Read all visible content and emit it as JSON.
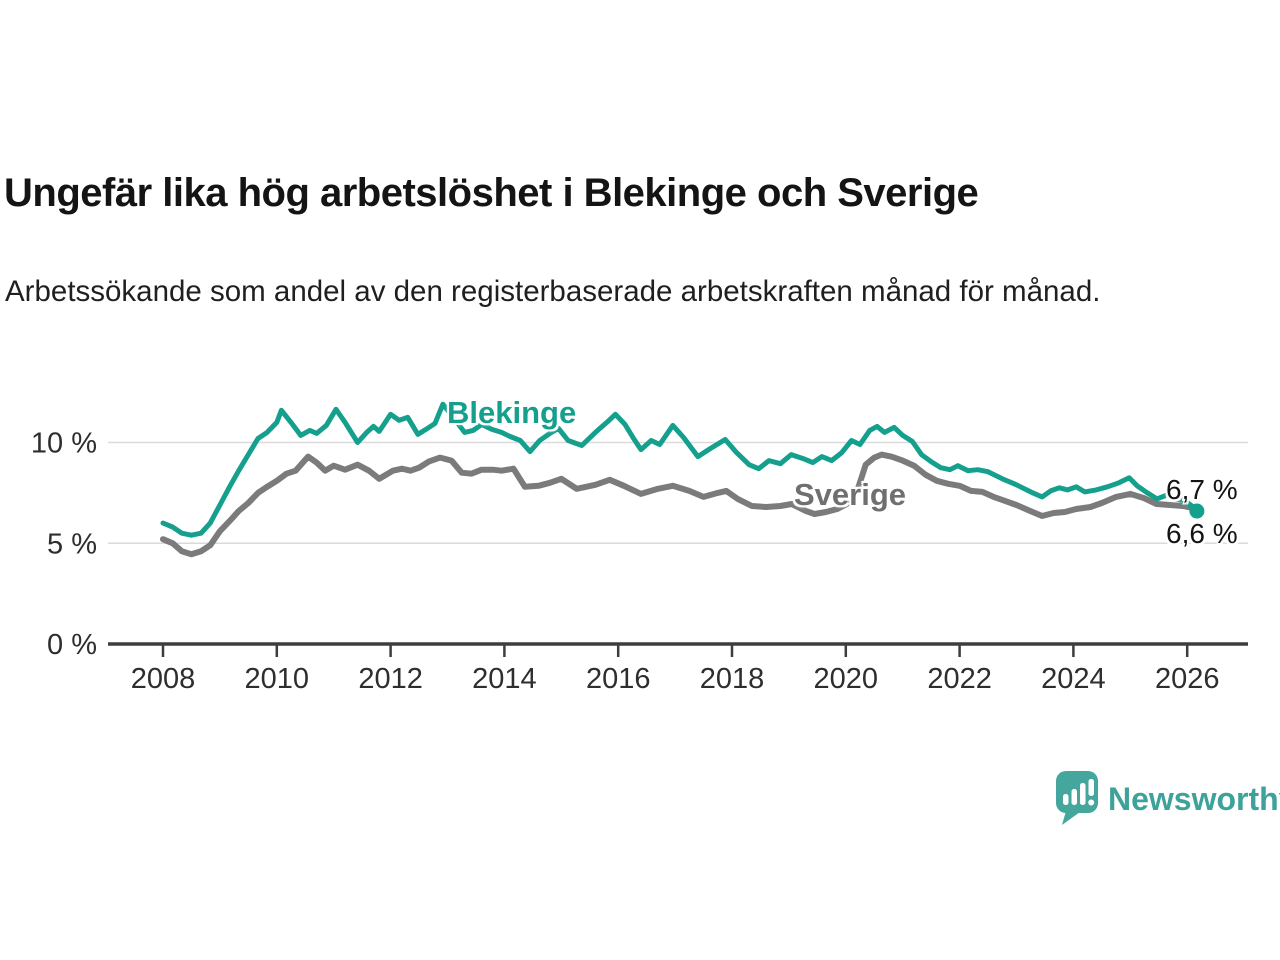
{
  "title": "Ungefär lika hög arbetslöshet i Blekinge och Sverige",
  "subtitle": "Arbetssökande som andel av den registerbaserade arbetskraften månad för månad.",
  "branding": {
    "logo_text": "Newsworthy",
    "logo_color": "#40a49b",
    "logo_icon": "speech-bubble-bar-chart"
  },
  "colors": {
    "blekinge": "#14a08d",
    "sverige": "#7b7b7b",
    "sverige_label": "#6f6f6f",
    "axis": "#3d3d3d",
    "grid": "#dadada",
    "tick_text": "#2e2e2e",
    "value_text": "#141414"
  },
  "chart_data": {
    "type": "line",
    "title": "Ungefär lika hög arbetslöshet i Blekinge och Sverige",
    "xlabel": "",
    "ylabel": "Arbetssökande som andel av den registerbaserade arbetskraften",
    "unit": "%",
    "xlim": [
      2008,
      2026.3
    ],
    "ylim": [
      0,
      12.4
    ],
    "grid": "horizontal",
    "legend_position": "inline-labels",
    "x_ticks": [
      2008,
      2010,
      2012,
      2014,
      2016,
      2018,
      2020,
      2022,
      2024,
      2026
    ],
    "y_ticks": [
      {
        "value": 0,
        "label": "0 %"
      },
      {
        "value": 5,
        "label": "5 %"
      },
      {
        "value": 10,
        "label": "10 %"
      }
    ],
    "series": [
      {
        "name": "Blekinge",
        "end_label": "6,6 %",
        "end_value": 6.6,
        "marker_on_last_point": true,
        "points": [
          [
            2008.0,
            6.0
          ],
          [
            2008.17,
            5.8
          ],
          [
            2008.33,
            5.5
          ],
          [
            2008.5,
            5.4
          ],
          [
            2008.67,
            5.5
          ],
          [
            2008.83,
            6.0
          ],
          [
            2009.0,
            6.9
          ],
          [
            2009.17,
            7.8
          ],
          [
            2009.33,
            8.6
          ],
          [
            2009.5,
            9.4
          ],
          [
            2009.67,
            10.2
          ],
          [
            2009.83,
            10.5
          ],
          [
            2010.0,
            11.0
          ],
          [
            2010.08,
            11.6
          ],
          [
            2010.25,
            11.0
          ],
          [
            2010.42,
            10.35
          ],
          [
            2010.58,
            10.6
          ],
          [
            2010.7,
            10.45
          ],
          [
            2010.87,
            10.85
          ],
          [
            2011.04,
            11.65
          ],
          [
            2011.2,
            11.0
          ],
          [
            2011.42,
            10.0
          ],
          [
            2011.58,
            10.5
          ],
          [
            2011.7,
            10.8
          ],
          [
            2011.8,
            10.55
          ],
          [
            2012.0,
            11.4
          ],
          [
            2012.15,
            11.1
          ],
          [
            2012.3,
            11.25
          ],
          [
            2012.48,
            10.4
          ],
          [
            2012.62,
            10.65
          ],
          [
            2012.78,
            10.95
          ],
          [
            2012.92,
            11.9
          ],
          [
            2013.1,
            11.25
          ],
          [
            2013.3,
            10.5
          ],
          [
            2013.45,
            10.6
          ],
          [
            2013.6,
            10.9
          ],
          [
            2013.78,
            10.65
          ],
          [
            2013.95,
            10.5
          ],
          [
            2014.1,
            10.3
          ],
          [
            2014.28,
            10.1
          ],
          [
            2014.45,
            9.55
          ],
          [
            2014.62,
            10.1
          ],
          [
            2014.8,
            10.45
          ],
          [
            2014.95,
            10.7
          ],
          [
            2015.12,
            10.1
          ],
          [
            2015.36,
            9.85
          ],
          [
            2015.6,
            10.5
          ],
          [
            2015.8,
            11.0
          ],
          [
            2015.95,
            11.4
          ],
          [
            2016.12,
            10.9
          ],
          [
            2016.27,
            10.2
          ],
          [
            2016.4,
            9.65
          ],
          [
            2016.58,
            10.1
          ],
          [
            2016.73,
            9.9
          ],
          [
            2016.96,
            10.85
          ],
          [
            2017.15,
            10.25
          ],
          [
            2017.4,
            9.3
          ],
          [
            2017.62,
            9.7
          ],
          [
            2017.88,
            10.15
          ],
          [
            2018.08,
            9.5
          ],
          [
            2018.3,
            8.9
          ],
          [
            2018.47,
            8.7
          ],
          [
            2018.65,
            9.1
          ],
          [
            2018.85,
            8.95
          ],
          [
            2019.04,
            9.4
          ],
          [
            2019.25,
            9.2
          ],
          [
            2019.42,
            9.0
          ],
          [
            2019.58,
            9.3
          ],
          [
            2019.75,
            9.1
          ],
          [
            2019.93,
            9.5
          ],
          [
            2020.1,
            10.1
          ],
          [
            2020.25,
            9.9
          ],
          [
            2020.42,
            10.6
          ],
          [
            2020.55,
            10.8
          ],
          [
            2020.68,
            10.5
          ],
          [
            2020.85,
            10.75
          ],
          [
            2021.0,
            10.35
          ],
          [
            2021.17,
            10.05
          ],
          [
            2021.33,
            9.4
          ],
          [
            2021.5,
            9.05
          ],
          [
            2021.67,
            8.75
          ],
          [
            2021.83,
            8.65
          ],
          [
            2021.97,
            8.85
          ],
          [
            2022.15,
            8.6
          ],
          [
            2022.32,
            8.65
          ],
          [
            2022.5,
            8.55
          ],
          [
            2022.75,
            8.2
          ],
          [
            2023.0,
            7.9
          ],
          [
            2023.25,
            7.55
          ],
          [
            2023.45,
            7.3
          ],
          [
            2023.6,
            7.6
          ],
          [
            2023.75,
            7.75
          ],
          [
            2023.9,
            7.65
          ],
          [
            2024.05,
            7.8
          ],
          [
            2024.2,
            7.55
          ],
          [
            2024.4,
            7.65
          ],
          [
            2024.6,
            7.8
          ],
          [
            2024.8,
            8.0
          ],
          [
            2024.98,
            8.25
          ],
          [
            2025.12,
            7.85
          ],
          [
            2025.3,
            7.5
          ],
          [
            2025.47,
            7.2
          ],
          [
            2025.63,
            7.38
          ],
          [
            2025.8,
            7.2
          ],
          [
            2025.97,
            7.1
          ],
          [
            2026.08,
            6.85
          ],
          [
            2026.17,
            6.6
          ]
        ]
      },
      {
        "name": "Sverige",
        "end_label": "6,7 %",
        "end_value": 6.7,
        "marker_on_last_point": false,
        "points": [
          [
            2008.0,
            5.2
          ],
          [
            2008.17,
            5.0
          ],
          [
            2008.33,
            4.6
          ],
          [
            2008.5,
            4.45
          ],
          [
            2008.67,
            4.6
          ],
          [
            2008.83,
            4.9
          ],
          [
            2009.0,
            5.6
          ],
          [
            2009.17,
            6.1
          ],
          [
            2009.33,
            6.6
          ],
          [
            2009.5,
            7.0
          ],
          [
            2009.67,
            7.5
          ],
          [
            2009.83,
            7.8
          ],
          [
            2010.0,
            8.1
          ],
          [
            2010.17,
            8.45
          ],
          [
            2010.33,
            8.6
          ],
          [
            2010.55,
            9.3
          ],
          [
            2010.7,
            9.0
          ],
          [
            2010.85,
            8.6
          ],
          [
            2011.0,
            8.85
          ],
          [
            2011.2,
            8.65
          ],
          [
            2011.42,
            8.9
          ],
          [
            2011.62,
            8.6
          ],
          [
            2011.8,
            8.2
          ],
          [
            2012.04,
            8.6
          ],
          [
            2012.2,
            8.7
          ],
          [
            2012.35,
            8.6
          ],
          [
            2012.5,
            8.75
          ],
          [
            2012.67,
            9.05
          ],
          [
            2012.87,
            9.25
          ],
          [
            2013.07,
            9.1
          ],
          [
            2013.25,
            8.5
          ],
          [
            2013.42,
            8.45
          ],
          [
            2013.6,
            8.65
          ],
          [
            2013.8,
            8.65
          ],
          [
            2013.95,
            8.6
          ],
          [
            2014.16,
            8.7
          ],
          [
            2014.36,
            7.8
          ],
          [
            2014.6,
            7.85
          ],
          [
            2014.8,
            8.0
          ],
          [
            2015.0,
            8.2
          ],
          [
            2015.27,
            7.7
          ],
          [
            2015.6,
            7.9
          ],
          [
            2015.85,
            8.15
          ],
          [
            2016.1,
            7.85
          ],
          [
            2016.4,
            7.45
          ],
          [
            2016.7,
            7.7
          ],
          [
            2016.96,
            7.85
          ],
          [
            2017.25,
            7.6
          ],
          [
            2017.5,
            7.3
          ],
          [
            2017.75,
            7.5
          ],
          [
            2017.9,
            7.6
          ],
          [
            2018.1,
            7.2
          ],
          [
            2018.35,
            6.85
          ],
          [
            2018.6,
            6.8
          ],
          [
            2018.85,
            6.85
          ],
          [
            2019.05,
            6.95
          ],
          [
            2019.3,
            6.6
          ],
          [
            2019.45,
            6.45
          ],
          [
            2019.65,
            6.55
          ],
          [
            2019.85,
            6.7
          ],
          [
            2020.05,
            7.0
          ],
          [
            2020.2,
            7.6
          ],
          [
            2020.35,
            8.9
          ],
          [
            2020.5,
            9.25
          ],
          [
            2020.63,
            9.4
          ],
          [
            2020.8,
            9.3
          ],
          [
            2021.0,
            9.1
          ],
          [
            2021.2,
            8.85
          ],
          [
            2021.4,
            8.4
          ],
          [
            2021.6,
            8.1
          ],
          [
            2021.8,
            7.95
          ],
          [
            2022.0,
            7.85
          ],
          [
            2022.2,
            7.6
          ],
          [
            2022.4,
            7.55
          ],
          [
            2022.6,
            7.3
          ],
          [
            2022.8,
            7.1
          ],
          [
            2023.0,
            6.9
          ],
          [
            2023.2,
            6.65
          ],
          [
            2023.45,
            6.35
          ],
          [
            2023.65,
            6.5
          ],
          [
            2023.85,
            6.55
          ],
          [
            2024.05,
            6.7
          ],
          [
            2024.3,
            6.8
          ],
          [
            2024.5,
            7.0
          ],
          [
            2024.75,
            7.3
          ],
          [
            2025.0,
            7.45
          ],
          [
            2025.23,
            7.25
          ],
          [
            2025.46,
            6.95
          ],
          [
            2025.7,
            6.9
          ],
          [
            2025.93,
            6.85
          ],
          [
            2026.17,
            6.7
          ]
        ]
      }
    ]
  }
}
